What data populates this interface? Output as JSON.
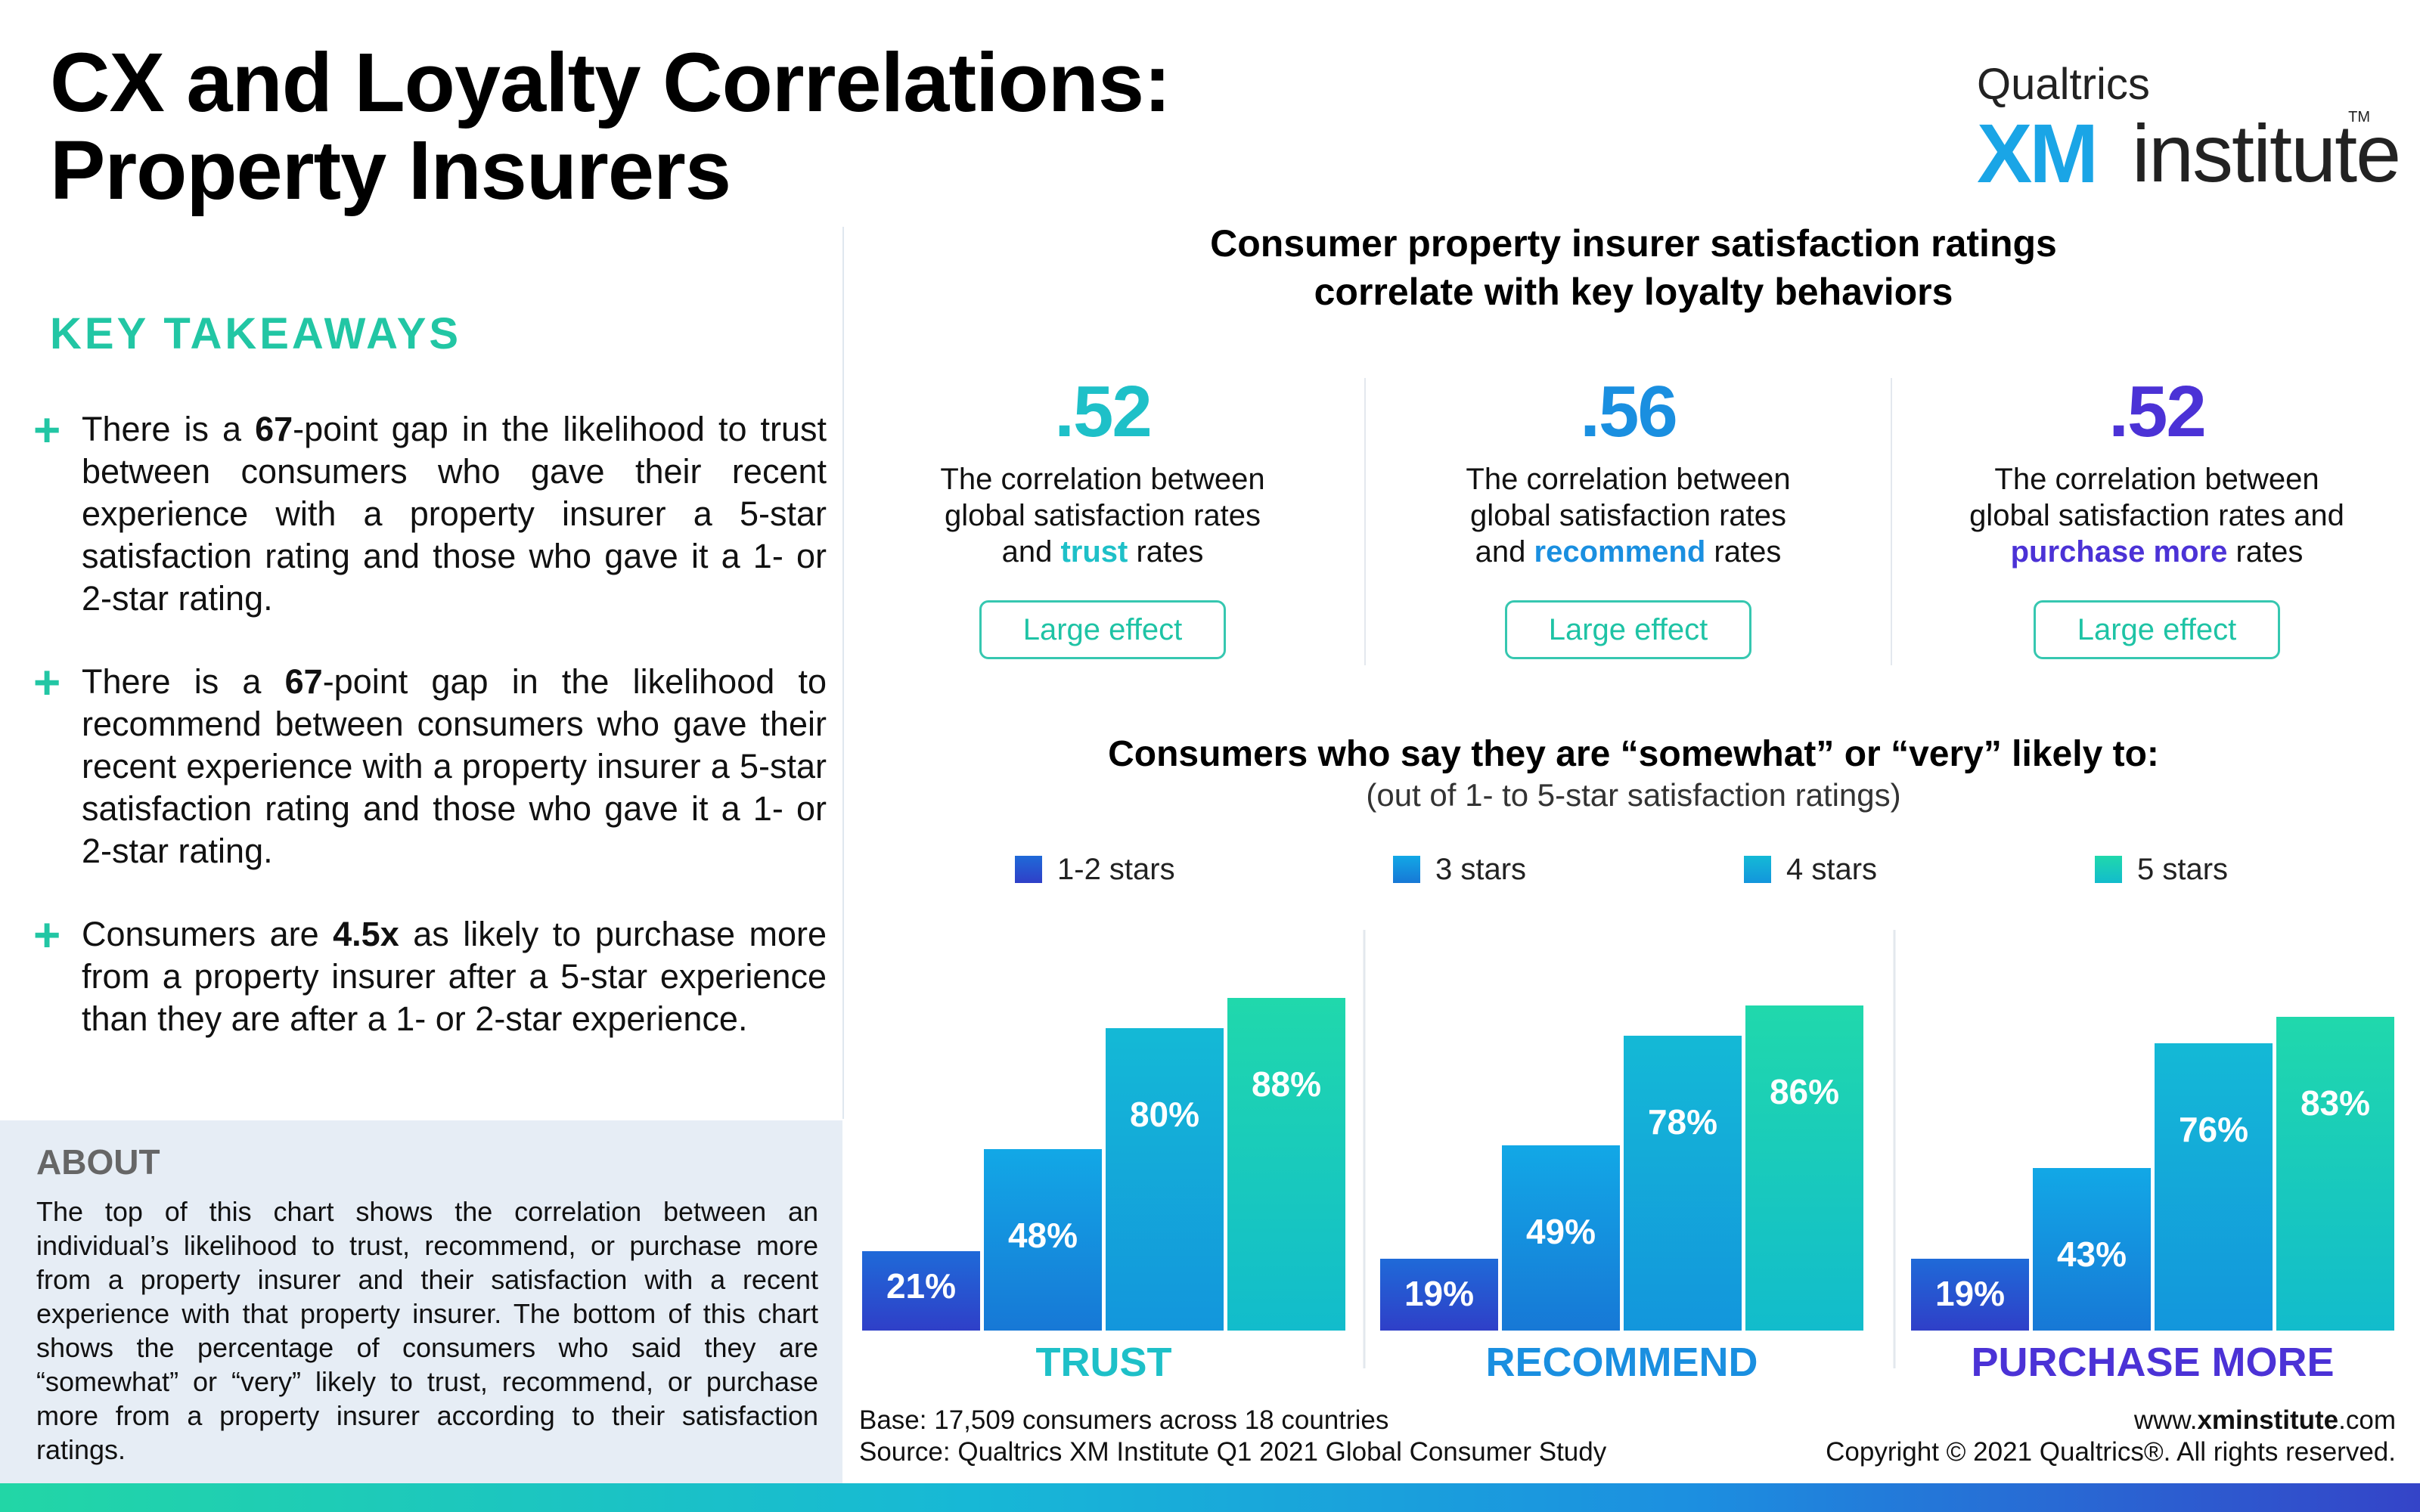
{
  "title": {
    "line1": "CX and Loyalty Correlations:",
    "line2": "Property Insurers"
  },
  "logo": {
    "top": "Qualtrics",
    "xm": "XM",
    "institute": "institute",
    "tm": "TM"
  },
  "takeaways": {
    "heading": "KEY TAKEAWAYS",
    "items": [
      {
        "pre": "There is a ",
        "bold": "67",
        "post": "-point gap in the likelihood to trust between consumers who gave their recent experience with a property insurer a 5-star satisfaction rating and those who gave it a 1- or 2-star rating."
      },
      {
        "pre": "There is a ",
        "bold": "67",
        "post": "-point gap in the likelihood to recommend between consumers who gave their recent experience with a property insurer a 5-star satisfaction rating and those who gave it a 1- or 2-star rating."
      },
      {
        "pre": "Consumers are ",
        "bold": "4.5x",
        "post": " as likely to purchase more from a property insurer after a 5-star experience than they are after a 1- or 2-star experience."
      }
    ]
  },
  "about": {
    "heading": "ABOUT",
    "text": "The top of this chart shows the correlation between an individual’s likelihood to trust, recommend, or purchase more from a property insurer and their satisfaction with a recent experience with that property insurer. The bottom of this chart shows the percentage of consumers who said they are “somewhat” or “very” likely to trust, recommend, or purchase more from a property insurer according to their satisfaction ratings."
  },
  "correlations": {
    "heading_line1": "Consumer property insurer satisfaction ratings",
    "heading_line2": "correlate with key loyalty behaviors",
    "items": [
      {
        "value": ".52",
        "color": "#1ec0c8",
        "desc_line1": "The correlation between",
        "desc_line2": "global satisfaction rates",
        "desc_pre": "and ",
        "keyword": "trust",
        "desc_post": " rates",
        "effect": "Large effect"
      },
      {
        "value": ".56",
        "color": "#1a8fe0",
        "desc_line1": "The correlation between",
        "desc_line2": "global satisfaction rates",
        "desc_pre": "and ",
        "keyword": "recommend",
        "desc_post": " rates",
        "effect": "Large effect"
      },
      {
        "value": ".52",
        "color": "#4b32d6",
        "desc_line1": "The correlation between",
        "desc_line2": "global satisfaction rates and",
        "desc_pre": "",
        "keyword": "purchase more",
        "desc_post": " rates",
        "effect": "Large effect"
      }
    ]
  },
  "bars_heading": {
    "title": "Consumers who say they are “somewhat” or “very” likely to:",
    "subtitle": "(out of 1- to 5-star satisfaction ratings)"
  },
  "chart_data": {
    "type": "bar",
    "categories": [
      "TRUST",
      "RECOMMEND",
      "PURCHASE MORE"
    ],
    "category_colors": [
      "#1ec0c8",
      "#1a8fe0",
      "#4b32d6"
    ],
    "series": [
      {
        "name": "1-2 stars",
        "values": [
          21,
          19,
          19
        ],
        "color_top": "#1f6ad8",
        "color_bottom": "#2f3fc8"
      },
      {
        "name": "3 stars",
        "values": [
          48,
          49,
          43
        ],
        "color_top": "#12a8e6",
        "color_bottom": "#1778d6"
      },
      {
        "name": "4 stars",
        "values": [
          80,
          78,
          76
        ],
        "color_top": "#14b9d6",
        "color_bottom": "#1396dc"
      },
      {
        "name": "5 stars",
        "values": [
          88,
          86,
          83
        ],
        "color_top": "#20d8ac",
        "color_bottom": "#12bccc"
      }
    ],
    "ylim": [
      0,
      100
    ],
    "grid": false,
    "legend_position": "top",
    "value_suffix": "%"
  },
  "footer": {
    "base": "Base: 17,509 consumers across 18 countries",
    "source": "Source: Qualtrics XM Institute Q1 2021 Global Consumer Study",
    "site_pre": "www.",
    "site_bold": "xminstitute",
    "site_post": ".com",
    "copyright": "Copyright © 2021 Qualtrics®. All rights reserved."
  }
}
